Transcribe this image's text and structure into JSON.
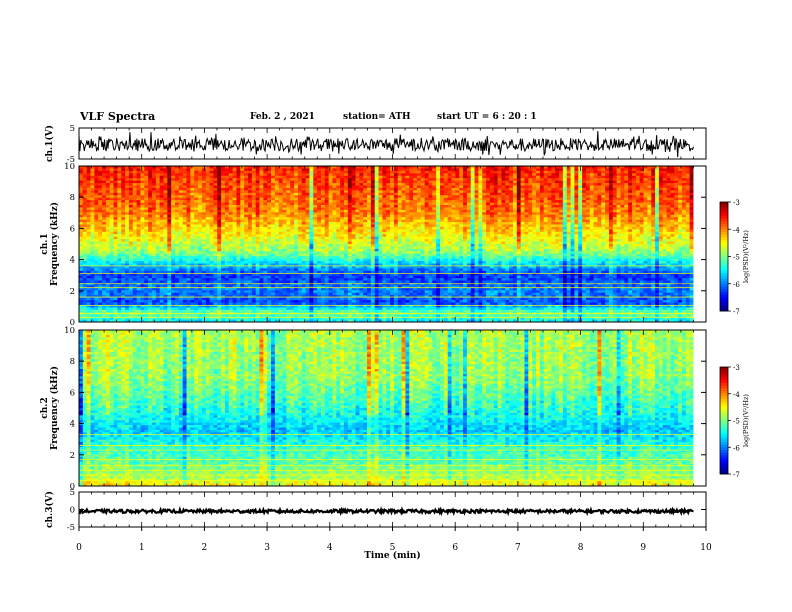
{
  "header": {
    "title": "VLF Spectra",
    "date": "Feb. 2  , 2021",
    "station": "station= ATH",
    "start": "start  UT  =   6  : 20 : 1"
  },
  "colors": {
    "colormap": [
      "#00007f",
      "#0000ff",
      "#0080ff",
      "#00ffff",
      "#80ff80",
      "#ffff00",
      "#ff8000",
      "#ff0000",
      "#7f0000"
    ]
  },
  "chart_data": [
    {
      "type": "line",
      "panel": "ch1-waveform",
      "ylabel": "ch.1(V)",
      "ylim": [
        -5,
        5
      ],
      "yticks": [
        "-5",
        "5"
      ],
      "xlim": [
        0,
        10
      ],
      "description_series": "noisy waveform, roughly -3 to +3 V"
    },
    {
      "type": "heatmap",
      "panel": "ch1-spectrogram",
      "ylabel": "ch.1\nFrequency  (kHz)",
      "ylim": [
        0,
        10
      ],
      "yticks": [
        "0",
        "2",
        "4",
        "6",
        "8",
        "10"
      ],
      "xlim": [
        0,
        9.8
      ],
      "colorbar": {
        "label": "log(PSD)(V²/Hz)",
        "range": [
          -7,
          -3
        ],
        "ticks": [
          "-3",
          "-4",
          "-5",
          "-6",
          "-7"
        ]
      },
      "bands_kHz_to_logpsd": [
        [
          0,
          -5.6
        ],
        [
          0.6,
          -5.0
        ],
        [
          1.2,
          -6.2
        ],
        [
          2.0,
          -6.0
        ],
        [
          3.0,
          -6.3
        ],
        [
          4.5,
          -4.9
        ],
        [
          5.5,
          -4.5
        ],
        [
          7.0,
          -4.0
        ],
        [
          10,
          -3.6
        ]
      ]
    },
    {
      "type": "heatmap",
      "panel": "ch2-spectrogram",
      "ylabel": "ch.2\nFrequency  (kHz)",
      "ylim": [
        0,
        10
      ],
      "yticks": [
        "0",
        "2",
        "4",
        "6",
        "8",
        "10"
      ],
      "xlim": [
        0,
        9.8
      ],
      "colorbar": {
        "label": "log(PSD)(V²/Hz)",
        "range": [
          -7,
          -3
        ],
        "ticks": [
          "-3",
          "-4",
          "-5",
          "-6",
          "-7"
        ]
      },
      "bands_kHz_to_logpsd": [
        [
          0,
          -4.4
        ],
        [
          0.5,
          -4.8
        ],
        [
          1.5,
          -5.1
        ],
        [
          2.5,
          -5.3
        ],
        [
          3.5,
          -5.7
        ],
        [
          5.0,
          -5.3
        ],
        [
          7.0,
          -4.9
        ],
        [
          10,
          -4.8
        ]
      ]
    },
    {
      "type": "line",
      "panel": "ch3-waveform",
      "ylabel": "ch.3(V)",
      "ylim": [
        -5,
        5
      ],
      "yticks": [
        "-5",
        "0",
        "5"
      ],
      "xlim": [
        0,
        10
      ],
      "xlabel": "Time  (min)",
      "xticks": [
        "0",
        "1",
        "2",
        "3",
        "4",
        "5",
        "6",
        "7",
        "8",
        "9",
        "10"
      ],
      "description_series": "constant near -0.5 V with thin noise"
    }
  ]
}
